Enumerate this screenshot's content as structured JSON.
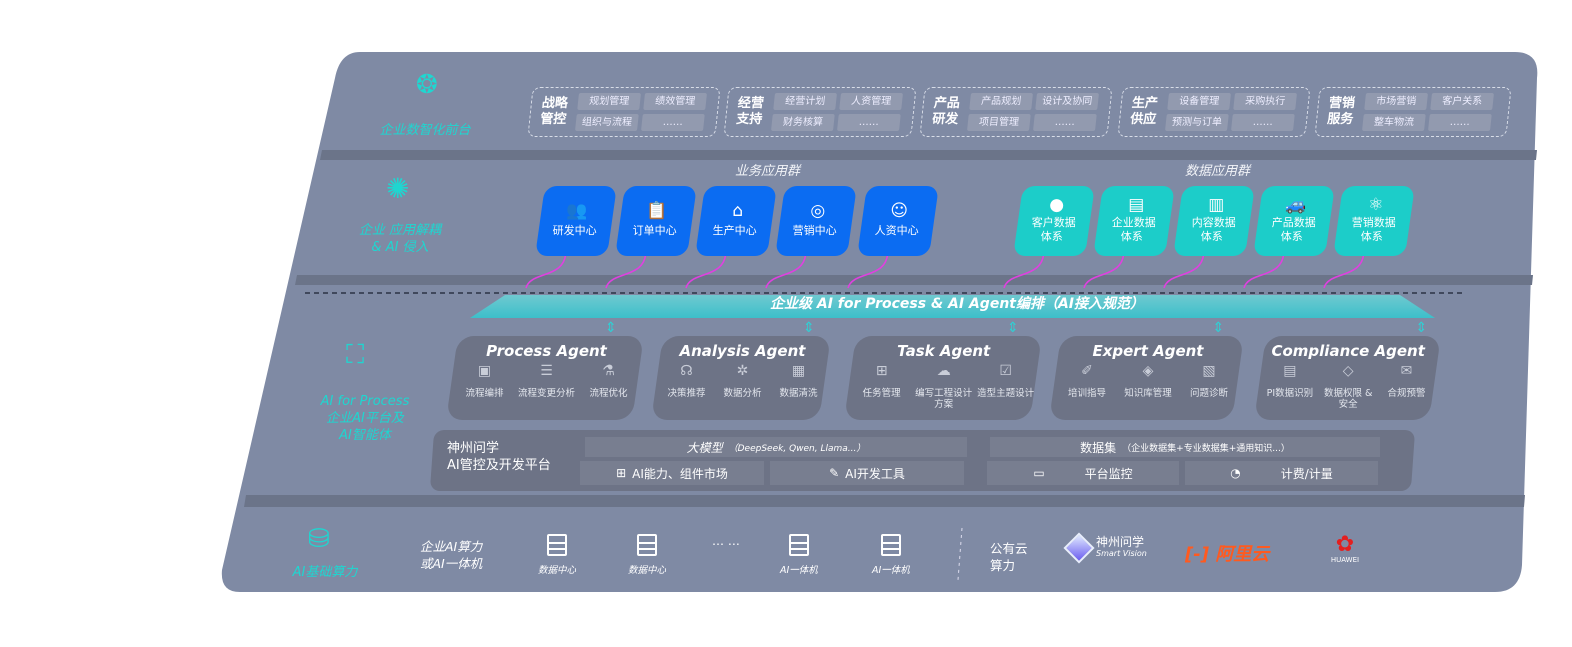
{
  "layers": {
    "front": {
      "label": "企业数智化前台",
      "icon": "brain-icon",
      "groups": [
        {
          "title": "战略管控",
          "items": [
            "规划管理",
            "绩效管理",
            "组织与流程",
            "……"
          ]
        },
        {
          "title": "经营支持",
          "items": [
            "经营计划",
            "人资管理",
            "财务核算",
            "……"
          ]
        },
        {
          "title": "产品研发",
          "items": [
            "产品规划",
            "设计及协同",
            "项目管理",
            "……"
          ]
        },
        {
          "title": "生产供应",
          "items": [
            "设备管理",
            "采购执行",
            "预测与订单",
            "……"
          ]
        },
        {
          "title": "营销服务",
          "items": [
            "市场营销",
            "客户关系",
            "整车物流",
            "……"
          ]
        }
      ]
    },
    "apps": {
      "label1": "企业 应用解耦",
      "label2": "& AI 侵入",
      "icon": "molecule-icon",
      "business_title": "业务应用群",
      "business": [
        {
          "label": "研发中心",
          "icon": "team-icon"
        },
        {
          "label": "订单中心",
          "icon": "clipboard-icon"
        },
        {
          "label": "生产中心",
          "icon": "factory-icon"
        },
        {
          "label": "营销中心",
          "icon": "target-icon"
        },
        {
          "label": "人资中心",
          "icon": "person-icon"
        }
      ],
      "data_title": "数据应用群",
      "data": [
        {
          "l1": "客户数据",
          "l2": "体系",
          "icon": "user-icon"
        },
        {
          "l1": "企业数据",
          "l2": "体系",
          "icon": "building-icon"
        },
        {
          "l1": "内容数据",
          "l2": "体系",
          "icon": "books-icon"
        },
        {
          "l1": "产品数据",
          "l2": "体系",
          "icon": "car-icon"
        },
        {
          "l1": "营销数据",
          "l2": "体系",
          "icon": "atom-icon"
        }
      ]
    },
    "banner": "企业级 AI for Process & AI Agent编排（AI接入规范）",
    "ai": {
      "label1": "AI for Process",
      "label2": "企业AI平台及",
      "label3": "AI智能体",
      "icon": "face-scan-icon",
      "agents": [
        {
          "name": "Process Agent",
          "features": [
            "流程编排",
            "流程变更分析",
            "流程优化"
          ]
        },
        {
          "name": "Analysis Agent",
          "features": [
            "决策推荐",
            "数据分析",
            "数据清洗"
          ]
        },
        {
          "name": "Task Agent",
          "features": [
            "任务管理",
            "编写工程设计方案",
            "造型主题设计"
          ]
        },
        {
          "name": "Expert Agent",
          "features": [
            "培训指导",
            "知识库管理",
            "问题诊断"
          ]
        },
        {
          "name": "Compliance Agent",
          "features": [
            "PI数据识别",
            "数据权限 & 安全",
            "合规预警"
          ]
        }
      ],
      "platform": {
        "title1": "神州问学",
        "title2": "AI管控及开发平台",
        "model_title": "大模型",
        "model_note": "（DeepSeek, Qwen, Llama...）",
        "dataset_title": "数据集",
        "dataset_note": "（企业数据集+专业数据集+通用知识...）",
        "tools": [
          "AI能力、组件市场",
          "AI开发工具",
          "平台监控",
          "计费/计量"
        ]
      }
    },
    "compute": {
      "label": "AI基础算力",
      "icon": "database-icon",
      "enterprise1": "企业AI算力",
      "enterprise2": "或AI一体机",
      "servers": [
        "数据中心",
        "数据中心",
        "AI一体机",
        "AI一体机"
      ],
      "ellipsis": "… …",
      "public1": "公有云",
      "public2": "算力",
      "vendors": {
        "shenzhou": "神州问学",
        "shenzhou_sub": "Smart Vision",
        "aliyun": "阿里云",
        "huawei": "HUAWEI"
      }
    }
  },
  "colors": {
    "panel": "#7f8aa4",
    "business": "#0b6cf2",
    "data": "#1ccdc9",
    "accent": "#1fd6d0",
    "arrow": "#e040e0"
  }
}
